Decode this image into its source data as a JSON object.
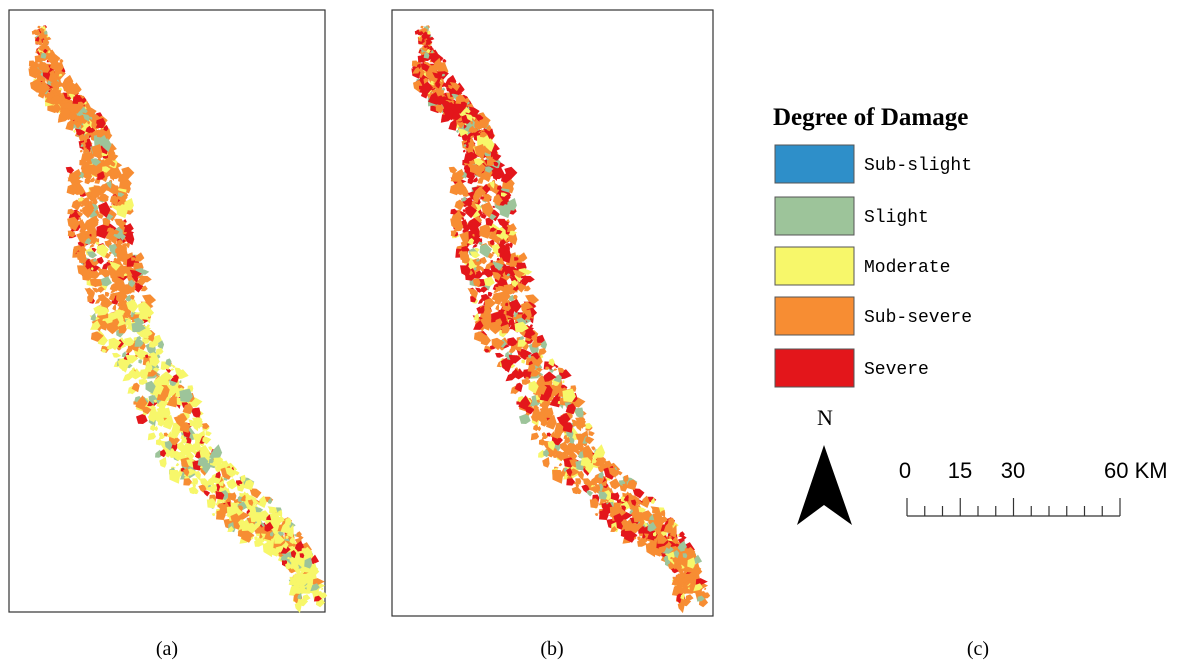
{
  "panels": [
    {
      "caption": "(a)"
    },
    {
      "caption": "(b)"
    },
    {
      "caption": "(c)"
    }
  ],
  "legend": {
    "title": "Degree of Damage",
    "items": [
      {
        "name": "Sub-slight",
        "color": "#2e8fc9"
      },
      {
        "name": "Slight",
        "color": "#9dc49a"
      },
      {
        "name": "Moderate",
        "color": "#f7f76a"
      },
      {
        "name": "Sub-severe",
        "color": "#f78d33"
      },
      {
        "name": "Severe",
        "color": "#e3161b"
      }
    ]
  },
  "north_arrow": {
    "label": "N"
  },
  "scale_bar": {
    "labels": [
      "0",
      "15",
      "30",
      "60 KM"
    ]
  }
}
